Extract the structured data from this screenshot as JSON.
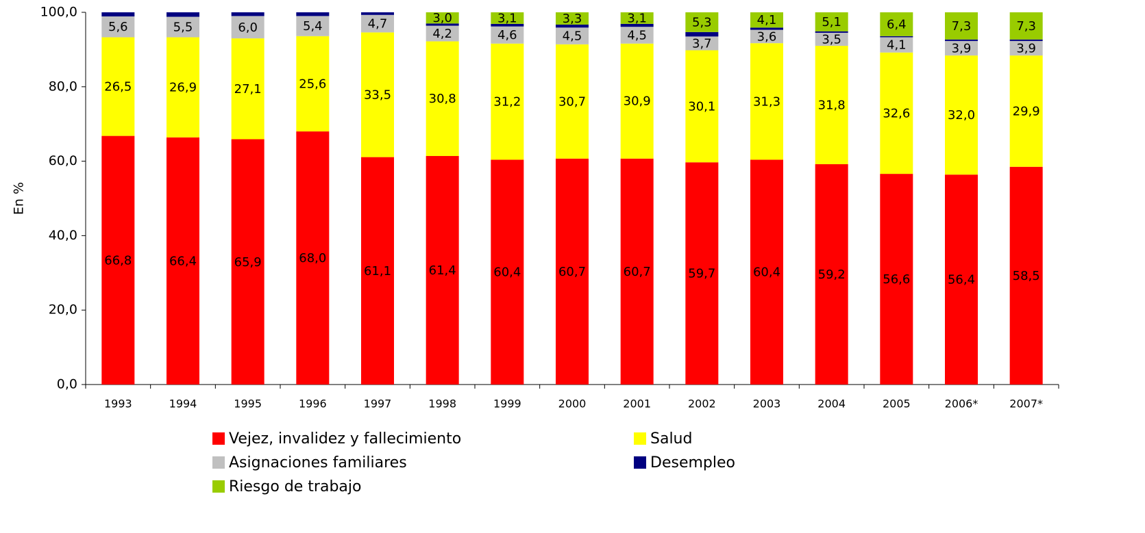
{
  "chart_data": {
    "type": "stacked_bar",
    "y_label": "En %",
    "categories": [
      "1993",
      "1994",
      "1995",
      "1996",
      "1997",
      "1998",
      "1999",
      "2000",
      "2001",
      "2002",
      "2003",
      "2004",
      "2005",
      "2006*",
      "2007*"
    ],
    "series": [
      {
        "name": "Vejez, invalidez y fallecimiento",
        "color": "#ff0000",
        "values": [
          66.8,
          66.4,
          65.9,
          68.0,
          61.1,
          61.4,
          60.4,
          60.7,
          60.7,
          59.7,
          60.4,
          59.2,
          56.6,
          56.4,
          58.5
        ],
        "value_labels": [
          "66,8",
          "66,4",
          "65,9",
          "68,0",
          "61,1",
          "61,4",
          "60,4",
          "60,7",
          "60,7",
          "59,7",
          "60,4",
          "59,2",
          "56,6",
          "56,4",
          "58,5"
        ]
      },
      {
        "name": "Salud",
        "color": "#ffff00",
        "values": [
          26.5,
          26.9,
          27.1,
          25.6,
          33.5,
          30.8,
          31.2,
          30.7,
          30.9,
          30.1,
          31.3,
          31.8,
          32.6,
          32.0,
          29.9
        ],
        "value_labels": [
          "26,5",
          "26,9",
          "27,1",
          "25,6",
          "33,5",
          "30,8",
          "31,2",
          "30,7",
          "30,9",
          "30,1",
          "31,3",
          "31,8",
          "32,6",
          "32,0",
          "29,9"
        ]
      },
      {
        "name": "Asignaciones familiares",
        "color": "#c0c0c0",
        "values": [
          5.6,
          5.5,
          6.0,
          5.4,
          4.7,
          4.2,
          4.6,
          4.5,
          4.5,
          3.7,
          3.6,
          3.5,
          4.1,
          3.9,
          3.9
        ],
        "value_labels": [
          "5,6",
          "5,5",
          "6,0",
          "5,4",
          "4,7",
          "4,2",
          "4,6",
          "4,5",
          "4,5",
          "3,7",
          "3,6",
          "3,5",
          "4,1",
          "3,9",
          "3,9"
        ]
      },
      {
        "name": "Desempleo",
        "color": "#000080",
        "values": [
          1.1,
          1.2,
          1.0,
          1.0,
          0.7,
          0.6,
          0.7,
          0.8,
          0.8,
          1.2,
          0.6,
          0.4,
          0.3,
          0.4,
          0.4
        ]
      },
      {
        "name": "Riesgo de trabajo",
        "color": "#99cc00",
        "values": [
          null,
          null,
          null,
          null,
          null,
          3.0,
          3.1,
          3.3,
          3.1,
          5.3,
          4.1,
          5.1,
          6.4,
          7.3,
          7.3
        ],
        "value_labels": [
          null,
          null,
          null,
          null,
          null,
          "3,0",
          "3,1",
          "3,3",
          "3,1",
          "5,3",
          "4,1",
          "5,1",
          "6,4",
          "7,3",
          "7,3"
        ]
      }
    ],
    "ylim": [
      0,
      100
    ],
    "yticks": [
      {
        "value": 0,
        "label": "0,0"
      },
      {
        "value": 20,
        "label": "20,0"
      },
      {
        "value": 40,
        "label": "40,0"
      },
      {
        "value": 60,
        "label": "60,0"
      },
      {
        "value": 80,
        "label": "80,0"
      },
      {
        "value": 100,
        "label": "100,0"
      }
    ]
  }
}
